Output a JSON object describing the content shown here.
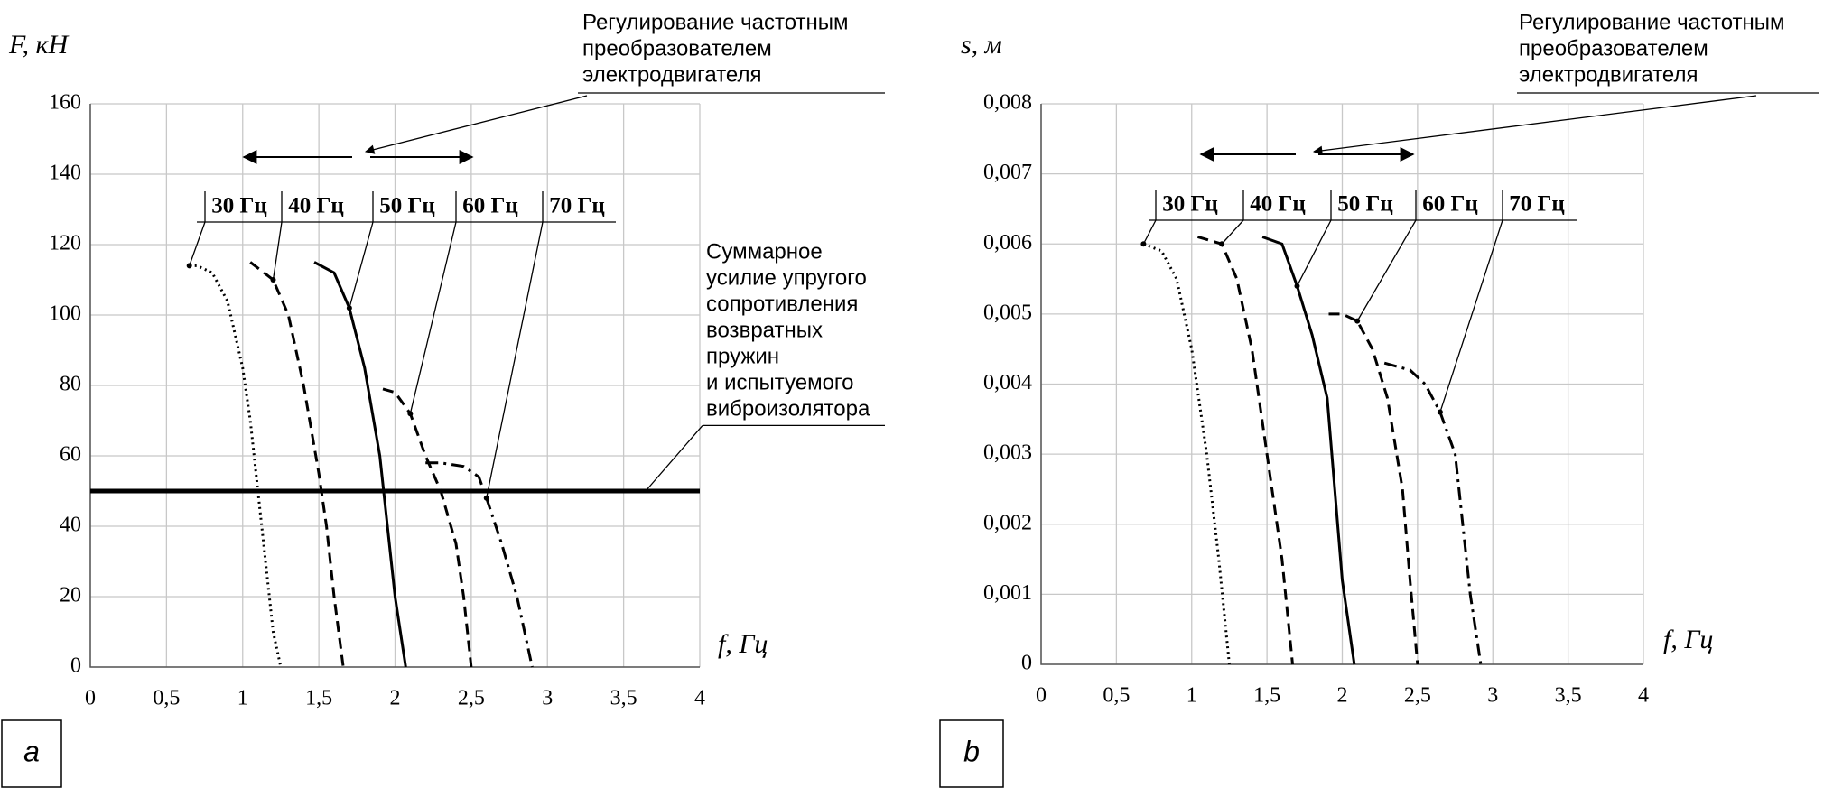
{
  "chart_data": [
    {
      "type": "line",
      "panel": "a",
      "ylabel": "F, кН",
      "xlabel": "f, Гц",
      "xlim": [
        0,
        4
      ],
      "xticks": [
        0,
        {
          "value": 0.5,
          "label": "0,5"
        },
        1,
        {
          "value": 1.5,
          "label": "1,5"
        },
        2,
        {
          "value": 2.5,
          "label": "2,5"
        },
        3,
        {
          "value": 3.5,
          "label": "3,5"
        },
        4
      ],
      "ylim": [
        0,
        160
      ],
      "yticks": [
        0,
        20,
        40,
        60,
        80,
        100,
        120,
        140,
        160
      ],
      "grid": true,
      "annotation": [
        "Регулирование частотным",
        "преобразователем",
        "электродвигателя"
      ],
      "hline": {
        "value": 50,
        "label": [
          "Суммарное",
          "усилие упругого",
          "сопротивления",
          "возвратных",
          "пружин",
          "и испытуемого",
          "виброизолятора"
        ]
      },
      "series": [
        {
          "name": "30 Гц",
          "color": "#000000",
          "style": "dotted",
          "x": [
            0.65,
            0.7,
            0.8,
            0.9,
            1.0,
            1.05,
            1.1,
            1.15,
            1.2,
            1.25
          ],
          "values": [
            114,
            114,
            112,
            104,
            85,
            70,
            50,
            30,
            10,
            0
          ]
        },
        {
          "name": "40 Гц",
          "color": "#000000",
          "style": "dashed",
          "x": [
            1.05,
            1.2,
            1.3,
            1.4,
            1.5,
            1.55,
            1.6,
            1.66
          ],
          "values": [
            115,
            110,
            100,
            80,
            55,
            40,
            20,
            0
          ]
        },
        {
          "name": "50 Гц",
          "color": "#000000",
          "style": "solid",
          "x": [
            1.47,
            1.6,
            1.7,
            1.8,
            1.9,
            1.95,
            2.0,
            2.07
          ],
          "values": [
            115,
            112,
            102,
            85,
            60,
            40,
            20,
            0
          ]
        },
        {
          "name": "60 Гц",
          "color": "#000000",
          "style": "dashed",
          "x": [
            1.92,
            2.0,
            2.1,
            2.2,
            2.3,
            2.4,
            2.45,
            2.5
          ],
          "values": [
            79,
            78,
            72,
            60,
            50,
            35,
            20,
            0
          ]
        },
        {
          "name": "70 Гц",
          "color": "#000000",
          "style": "dashdot",
          "x": [
            2.2,
            2.3,
            2.45,
            2.55,
            2.6,
            2.7,
            2.8,
            2.9
          ],
          "values": [
            58,
            58,
            57,
            54,
            48,
            35,
            20,
            0
          ]
        }
      ]
    },
    {
      "type": "line",
      "panel": "b",
      "ylabel": "s, м",
      "xlabel": "f, Гц",
      "xlim": [
        0,
        4
      ],
      "xticks": [
        0,
        {
          "value": 0.5,
          "label": "0,5"
        },
        1,
        {
          "value": 1.5,
          "label": "1,5"
        },
        2,
        {
          "value": 2.5,
          "label": "2,5"
        },
        3,
        {
          "value": 3.5,
          "label": "3,5"
        },
        4
      ],
      "ylim": [
        0,
        0.008
      ],
      "yticks": [
        0,
        {
          "value": 0.001,
          "label": "0,001"
        },
        {
          "value": 0.002,
          "label": "0,002"
        },
        {
          "value": 0.003,
          "label": "0,003"
        },
        {
          "value": 0.004,
          "label": "0,004"
        },
        {
          "value": 0.005,
          "label": "0,005"
        },
        {
          "value": 0.006,
          "label": "0,006"
        },
        {
          "value": 0.007,
          "label": "0,007"
        },
        {
          "value": 0.008,
          "label": "0,008"
        }
      ],
      "grid": true,
      "annotation": [
        "Регулирование частотным",
        "преобразователем",
        "электродвигателя"
      ],
      "series": [
        {
          "name": "30 Гц",
          "color": "#000000",
          "style": "dotted",
          "x": [
            0.68,
            0.8,
            0.9,
            1.0,
            1.1,
            1.18,
            1.25
          ],
          "values": [
            0.006,
            0.0059,
            0.0055,
            0.0045,
            0.003,
            0.0015,
            0
          ]
        },
        {
          "name": "40 Гц",
          "color": "#000000",
          "style": "dashed",
          "x": [
            1.04,
            1.2,
            1.3,
            1.4,
            1.5,
            1.6,
            1.67
          ],
          "values": [
            0.0061,
            0.006,
            0.0055,
            0.0045,
            0.003,
            0.0015,
            0
          ]
        },
        {
          "name": "50 Гц",
          "color": "#000000",
          "style": "solid",
          "x": [
            1.47,
            1.6,
            1.7,
            1.8,
            1.9,
            1.95,
            2.0,
            2.08
          ],
          "values": [
            0.0061,
            0.006,
            0.0054,
            0.0047,
            0.0038,
            0.0025,
            0.0012,
            0
          ]
        },
        {
          "name": "60 Гц",
          "color": "#000000",
          "style": "dashed",
          "x": [
            1.91,
            2.0,
            2.1,
            2.2,
            2.3,
            2.4,
            2.45,
            2.5
          ],
          "values": [
            0.005,
            0.005,
            0.0049,
            0.0045,
            0.0038,
            0.0025,
            0.0012,
            0
          ]
        },
        {
          "name": "70 Гц",
          "color": "#000000",
          "style": "dashdot",
          "x": [
            2.28,
            2.45,
            2.55,
            2.65,
            2.75,
            2.8,
            2.85,
            2.92
          ],
          "values": [
            0.0043,
            0.0042,
            0.004,
            0.0036,
            0.003,
            0.002,
            0.001,
            0
          ]
        }
      ]
    }
  ]
}
